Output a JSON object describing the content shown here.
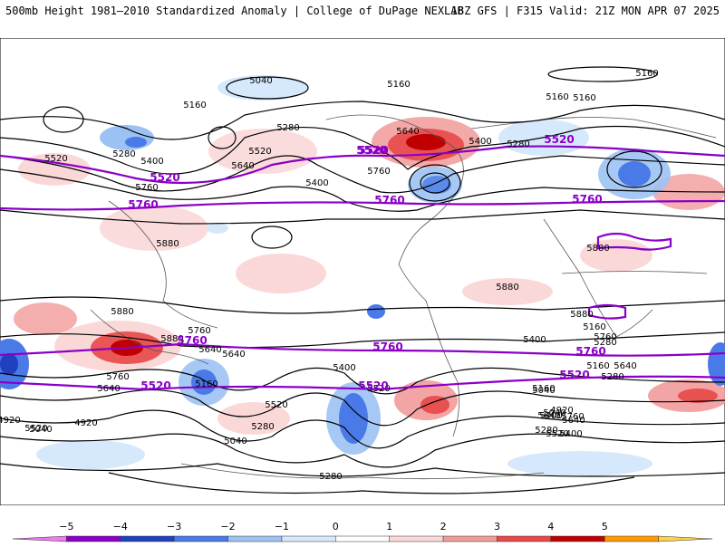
{
  "header": {
    "title_left": "500mb Height 1981–2010 Standardized Anomaly | College of DuPage NEXLAB",
    "title_right": "18Z GFS | F315 Valid: 21Z MON APR 07 2025"
  },
  "colorbar": {
    "ticks": [
      "−5",
      "−4",
      "−3",
      "−2",
      "−1",
      "0",
      "1",
      "2",
      "3",
      "4",
      "5"
    ],
    "colors": [
      "#f079f0",
      "#8a00c8",
      "#2040c0",
      "#4a7ae8",
      "#9cc2f4",
      "#d6e8fb",
      "#ffffff",
      "#fbd8d8",
      "#f29a9a",
      "#e84848",
      "#c00000",
      "#ff9a00",
      "#ffd24a"
    ]
  },
  "contour_labels": {
    "black": [
      "5040",
      "5160",
      "5160",
      "5160",
      "5160",
      "5160",
      "5280",
      "5280",
      "5280",
      "5400",
      "5400",
      "5400",
      "5520",
      "5520",
      "5640",
      "5640",
      "5760",
      "5760",
      "5880",
      "5880",
      "5880",
      "5880",
      "5880",
      "5880",
      "5760",
      "5640",
      "5400",
      "5280",
      "5520",
      "5640",
      "5760",
      "5640",
      "5400",
      "5520",
      "5160",
      "5280",
      "5040",
      "4920",
      "5040",
      "4920",
      "5520",
      "5280",
      "5040",
      "5160",
      "4920",
      "5520",
      "5640",
      "5400",
      "5160",
      "5280",
      "5640",
      "5760",
      "5160",
      "5040",
      "5280",
      "5760",
      "5400",
      "5640"
    ],
    "purple": [
      "5520",
      "5520",
      "5520",
      "5520",
      "5760",
      "5760",
      "5760",
      "5760",
      "5760",
      "5760",
      "5520",
      "5520",
      "5520"
    ]
  }
}
